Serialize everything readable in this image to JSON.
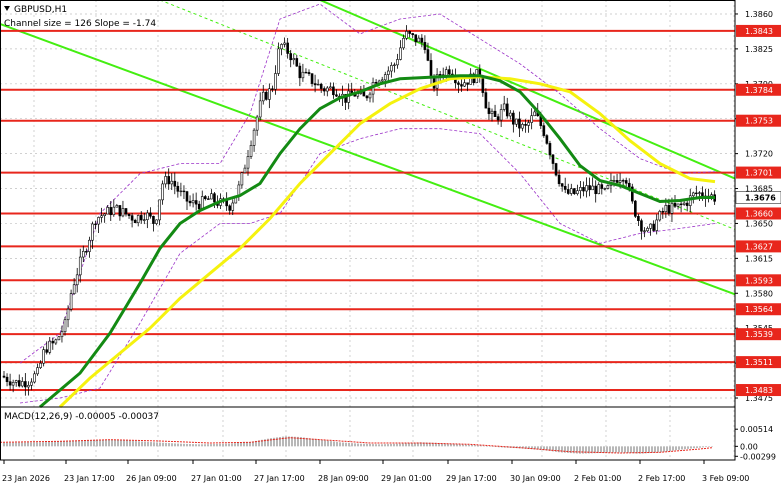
{
  "header": {
    "symbol_label": "GBPUSD,H1",
    "channel_label": "Channel size = 126 Slope = -1.74"
  },
  "macd": {
    "label": "MACD(12,26,9) -0.00005 -0.00037"
  },
  "colors": {
    "level_line": "#e8261c",
    "level_label_bg": "#e8261c",
    "channel": "#44ee11",
    "ma_fast": "#138a13",
    "ma_slow": "#f5f20e",
    "bollinger": "#9b32c8",
    "candles": "#000000",
    "macd_hist": "#b8b8b8",
    "macd_signal": "#e8261c",
    "grid": "#c0c0c0"
  },
  "chart_data": {
    "type": "candlestick",
    "symbol": "GBPUSD",
    "timeframe": "H1",
    "ylim": [
      1.3466,
      1.3874
    ],
    "price_ticks": [
      "1.3860",
      "1.3825",
      "1.3790",
      "1.3755",
      "1.3720",
      "1.3685",
      "1.3650",
      "1.3615",
      "1.3580",
      "1.3545",
      "1.3510",
      "1.3475"
    ],
    "x_labels": [
      "23 Jan 2026",
      "23 Jan 17:00",
      "26 Jan 09:00",
      "27 Jan 01:00",
      "27 Jan 17:00",
      "28 Jan 09:00",
      "29 Jan 01:00",
      "29 Jan 17:00",
      "30 Jan 09:00",
      "2 Feb 01:00",
      "2 Feb 17:00",
      "3 Feb 09:00"
    ],
    "levels": [
      "1.3843",
      "1.3784",
      "1.3753",
      "1.3701",
      "1.3660",
      "1.3627",
      "1.3593",
      "1.3564",
      "1.3539",
      "1.3511",
      "1.3483"
    ],
    "current_price": "1.3676",
    "price_path": [
      [
        0,
        1.3498
      ],
      [
        10,
        1.3493
      ],
      [
        18,
        1.349
      ],
      [
        28,
        1.3492
      ],
      [
        38,
        1.35
      ],
      [
        45,
        1.3525
      ],
      [
        55,
        1.353
      ],
      [
        65,
        1.3548
      ],
      [
        72,
        1.3585
      ],
      [
        80,
        1.361
      ],
      [
        88,
        1.3632
      ],
      [
        95,
        1.3655
      ],
      [
        105,
        1.366
      ],
      [
        115,
        1.3665
      ],
      [
        125,
        1.366
      ],
      [
        135,
        1.3655
      ],
      [
        145,
        1.366
      ],
      [
        155,
        1.365
      ],
      [
        162,
        1.369
      ],
      [
        170,
        1.3695
      ],
      [
        180,
        1.368
      ],
      [
        190,
        1.367
      ],
      [
        200,
        1.367
      ],
      [
        210,
        1.3675
      ],
      [
        220,
        1.367
      ],
      [
        230,
        1.3668
      ],
      [
        240,
        1.3688
      ],
      [
        250,
        1.373
      ],
      [
        262,
        1.3775
      ],
      [
        272,
        1.3785
      ],
      [
        280,
        1.383
      ],
      [
        290,
        1.382
      ],
      [
        300,
        1.38
      ],
      [
        310,
        1.3795
      ],
      [
        322,
        1.3785
      ],
      [
        335,
        1.3785
      ],
      [
        345,
        1.3775
      ],
      [
        355,
        1.378
      ],
      [
        365,
        1.3775
      ],
      [
        375,
        1.3795
      ],
      [
        385,
        1.38
      ],
      [
        395,
        1.381
      ],
      [
        405,
        1.384
      ],
      [
        415,
        1.3835
      ],
      [
        425,
        1.383
      ],
      [
        432,
        1.3785
      ],
      [
        440,
        1.38
      ],
      [
        450,
        1.3805
      ],
      [
        460,
        1.379
      ],
      [
        470,
        1.3795
      ],
      [
        480,
        1.38
      ],
      [
        488,
        1.376
      ],
      [
        495,
        1.3755
      ],
      [
        505,
        1.3765
      ],
      [
        515,
        1.375
      ],
      [
        525,
        1.3745
      ],
      [
        535,
        1.376
      ],
      [
        545,
        1.374
      ],
      [
        555,
        1.3705
      ],
      [
        565,
        1.368
      ],
      [
        575,
        1.368
      ],
      [
        585,
        1.3685
      ],
      [
        595,
        1.3685
      ],
      [
        605,
        1.368
      ],
      [
        615,
        1.3695
      ],
      [
        625,
        1.37
      ],
      [
        632,
        1.367
      ],
      [
        640,
        1.365
      ],
      [
        648,
        1.364
      ],
      [
        655,
        1.365
      ],
      [
        665,
        1.3665
      ],
      [
        675,
        1.3665
      ],
      [
        685,
        1.367
      ],
      [
        695,
        1.368
      ],
      [
        705,
        1.368
      ],
      [
        715,
        1.3676
      ]
    ],
    "ma_fast_path": [
      [
        40,
        1.3466
      ],
      [
        80,
        1.35
      ],
      [
        110,
        1.354
      ],
      [
        140,
        1.359
      ],
      [
        160,
        1.3625
      ],
      [
        180,
        1.365
      ],
      [
        200,
        1.3663
      ],
      [
        220,
        1.3672
      ],
      [
        240,
        1.3678
      ],
      [
        260,
        1.369
      ],
      [
        280,
        1.372
      ],
      [
        300,
        1.3745
      ],
      [
        320,
        1.3765
      ],
      [
        340,
        1.3776
      ],
      [
        360,
        1.3782
      ],
      [
        380,
        1.379
      ],
      [
        400,
        1.3795
      ],
      [
        420,
        1.3796
      ],
      [
        440,
        1.3797
      ],
      [
        460,
        1.3798
      ],
      [
        480,
        1.3798
      ],
      [
        500,
        1.3793
      ],
      [
        520,
        1.3782
      ],
      [
        540,
        1.376
      ],
      [
        560,
        1.3735
      ],
      [
        580,
        1.3708
      ],
      [
        600,
        1.3693
      ],
      [
        620,
        1.3688
      ],
      [
        640,
        1.368
      ],
      [
        660,
        1.3672
      ],
      [
        680,
        1.3673
      ],
      [
        700,
        1.3676
      ],
      [
        715,
        1.3676
      ]
    ],
    "ma_slow_path": [
      [
        60,
        1.3466
      ],
      [
        90,
        1.3495
      ],
      [
        120,
        1.352
      ],
      [
        150,
        1.3545
      ],
      [
        180,
        1.3575
      ],
      [
        210,
        1.36
      ],
      [
        240,
        1.3625
      ],
      [
        270,
        1.3655
      ],
      [
        300,
        1.369
      ],
      [
        330,
        1.372
      ],
      [
        360,
        1.375
      ],
      [
        390,
        1.377
      ],
      [
        420,
        1.3785
      ],
      [
        450,
        1.3795
      ],
      [
        480,
        1.3797
      ],
      [
        510,
        1.3795
      ],
      [
        540,
        1.379
      ],
      [
        570,
        1.3782
      ],
      [
        600,
        1.376
      ],
      [
        630,
        1.3733
      ],
      [
        660,
        1.371
      ],
      [
        690,
        1.3695
      ],
      [
        715,
        1.3692
      ]
    ],
    "bollinger_upper_path": [
      [
        20,
        1.351
      ],
      [
        60,
        1.354
      ],
      [
        100,
        1.366
      ],
      [
        140,
        1.37
      ],
      [
        180,
        1.371
      ],
      [
        220,
        1.371
      ],
      [
        250,
        1.376
      ],
      [
        280,
        1.3855
      ],
      [
        320,
        1.387
      ],
      [
        360,
        1.384
      ],
      [
        400,
        1.3855
      ],
      [
        440,
        1.386
      ],
      [
        480,
        1.3835
      ],
      [
        520,
        1.381
      ],
      [
        560,
        1.378
      ],
      [
        600,
        1.3745
      ],
      [
        640,
        1.3715
      ],
      [
        680,
        1.37
      ],
      [
        715,
        1.3702
      ]
    ],
    "bollinger_lower_path": [
      [
        20,
        1.347
      ],
      [
        60,
        1.3475
      ],
      [
        100,
        1.3485
      ],
      [
        140,
        1.355
      ],
      [
        180,
        1.362
      ],
      [
        220,
        1.365
      ],
      [
        250,
        1.365
      ],
      [
        280,
        1.366
      ],
      [
        320,
        1.372
      ],
      [
        360,
        1.3735
      ],
      [
        400,
        1.3745
      ],
      [
        440,
        1.3745
      ],
      [
        480,
        1.374
      ],
      [
        520,
        1.37
      ],
      [
        560,
        1.365
      ],
      [
        600,
        1.363
      ],
      [
        640,
        1.364
      ],
      [
        680,
        1.3645
      ],
      [
        715,
        1.365
      ]
    ],
    "channel_lines": [
      {
        "name": "upper",
        "from": [
          320,
          1.3874
        ],
        "to": [
          735,
          1.3695
        ]
      },
      {
        "name": "lower",
        "from": [
          0,
          1.385
        ],
        "to": [
          735,
          1.3579
        ]
      },
      {
        "name": "mid",
        "from": [
          160,
          1.3874
        ],
        "to": [
          735,
          1.3644
        ]
      }
    ],
    "macd_ticks": [
      "0.00514",
      "0.00",
      "-0.00299"
    ],
    "macd_ylim": [
      -0.0035,
      0.0055
    ],
    "macd_hist_path": [
      [
        0,
        0.001
      ],
      [
        40,
        0.0012
      ],
      [
        70,
        0.0016
      ],
      [
        100,
        0.002
      ],
      [
        120,
        0.0019
      ],
      [
        150,
        0.0013
      ],
      [
        180,
        0.0008
      ],
      [
        200,
        0.0006
      ],
      [
        230,
        0.0008
      ],
      [
        250,
        0.0013
      ],
      [
        270,
        0.0024
      ],
      [
        285,
        0.003
      ],
      [
        300,
        0.0028
      ],
      [
        320,
        0.002
      ],
      [
        340,
        0.0012
      ],
      [
        360,
        0.0008
      ],
      [
        380,
        0.0006
      ],
      [
        400,
        0.0008
      ],
      [
        420,
        0.0012
      ],
      [
        440,
        0.001
      ],
      [
        460,
        0.0006
      ],
      [
        480,
        0.0003
      ],
      [
        500,
        -0.0003
      ],
      [
        520,
        -0.0006
      ],
      [
        540,
        -0.001
      ],
      [
        560,
        -0.0018
      ],
      [
        580,
        -0.0022
      ],
      [
        600,
        -0.002
      ],
      [
        620,
        -0.0018
      ],
      [
        640,
        -0.0022
      ],
      [
        660,
        -0.0018
      ],
      [
        680,
        -0.001
      ],
      [
        700,
        -0.0004
      ],
      [
        712,
        0.0
      ]
    ],
    "macd_signal_path": [
      [
        0,
        0.0012
      ],
      [
        60,
        0.0015
      ],
      [
        110,
        0.002
      ],
      [
        160,
        0.0016
      ],
      [
        210,
        0.001
      ],
      [
        250,
        0.0012
      ],
      [
        290,
        0.0026
      ],
      [
        330,
        0.0018
      ],
      [
        370,
        0.001
      ],
      [
        420,
        0.001
      ],
      [
        470,
        0.0006
      ],
      [
        520,
        -0.0004
      ],
      [
        570,
        -0.0016
      ],
      [
        620,
        -0.002
      ],
      [
        660,
        -0.0018
      ],
      [
        700,
        -0.0008
      ],
      [
        712,
        -0.0004
      ]
    ]
  }
}
